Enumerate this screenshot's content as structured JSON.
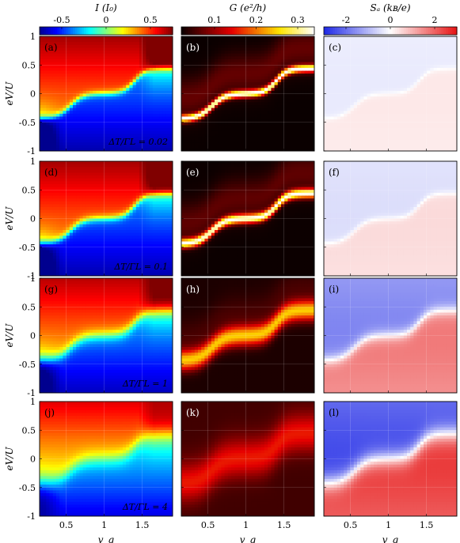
{
  "chart_data": {
    "type": "heatmap",
    "title": "",
    "colorbars": [
      {
        "label": "I (I₀)",
        "range": [
          -0.75,
          0.75
        ],
        "ticks": [
          "-0.5",
          "0",
          "0.5"
        ],
        "tick_values": [
          -0.5,
          0,
          0.5
        ],
        "colormap": "jet"
      },
      {
        "label": "G (e²/h)",
        "range": [
          0.02,
          0.34
        ],
        "ticks": [
          "0.1",
          "0.2",
          "0.3"
        ],
        "tick_values": [
          0.1,
          0.2,
          0.3
        ],
        "colormap": "hot"
      },
      {
        "label": "Sₐ (kʙ/e)",
        "range": [
          -3,
          3
        ],
        "ticks": [
          "-2",
          "0",
          "2"
        ],
        "tick_values": [
          -2,
          0,
          2
        ],
        "colormap": "blue-white-red"
      }
    ],
    "xlabel": "v_g",
    "ylabel": "eV/U",
    "xlim": [
      0.15,
      1.9
    ],
    "ylim": [
      -1,
      1
    ],
    "xticks": [
      "0.5",
      "1",
      "1.5"
    ],
    "xtick_values": [
      0.5,
      1,
      1.5
    ],
    "yticks": [
      "1",
      "0.5",
      "0",
      "-0.5",
      "-1"
    ],
    "ytick_values": [
      1,
      0.5,
      0,
      -0.5,
      -1
    ],
    "rows": [
      {
        "dT_label": "ΔT/ΓL = 0.02",
        "dT": 0.02,
        "panels": [
          "(a)",
          "(b)",
          "(c)"
        ]
      },
      {
        "dT_label": "ΔT/ΓL = 0.1",
        "dT": 0.1,
        "panels": [
          "(d)",
          "(e)",
          "(f)"
        ]
      },
      {
        "dT_label": "ΔT/ΓL = 1",
        "dT": 1,
        "panels": [
          "(g)",
          "(h)",
          "(i)"
        ]
      },
      {
        "dT_label": "ΔT/ΓL = 4",
        "dT": 4,
        "panels": [
          "(j)",
          "(k)",
          "(l)"
        ]
      }
    ]
  }
}
